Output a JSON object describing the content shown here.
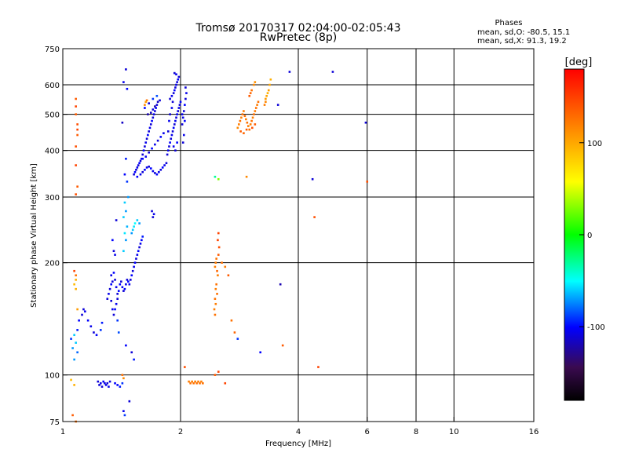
{
  "chart_data": {
    "type": "scatter",
    "title": "Tromsø 20170317 02:04:00-02:05:43",
    "subtitle": "RwPretec (8p)",
    "stats": {
      "heading": "Phases",
      "line_o": "mean, sd,O: -80.5, 15.1",
      "line_x": "mean, sd,X:  91.3, 19.2"
    },
    "xlabel": "Frequency [MHz]",
    "ylabel": "Stationary phase Virtual Height [km]",
    "x_scale": "log",
    "y_scale": "log",
    "xlim": [
      1,
      16
    ],
    "ylim": [
      75,
      750
    ],
    "x_ticks": [
      {
        "v": 1,
        "label": "1"
      },
      {
        "v": 2,
        "label": "2"
      },
      {
        "v": 4,
        "label": "4"
      },
      {
        "v": 6,
        "label": "6"
      },
      {
        "v": 8,
        "label": "8"
      },
      {
        "v": 10,
        "label": "10"
      },
      {
        "v": 16,
        "label": "16"
      }
    ],
    "y_ticks": [
      {
        "v": 75,
        "label": "75"
      },
      {
        "v": 100,
        "label": "100"
      },
      {
        "v": 200,
        "label": "200"
      },
      {
        "v": 300,
        "label": "300"
      },
      {
        "v": 400,
        "label": "400"
      },
      {
        "v": 500,
        "label": "500"
      },
      {
        "v": 600,
        "label": "600"
      },
      {
        "v": 750,
        "label": "750"
      }
    ],
    "grid": true,
    "colorbar": {
      "label": "[deg]",
      "range": [
        -180,
        180
      ],
      "ticks": [
        {
          "v": 100,
          "label": "100"
        },
        {
          "v": 0,
          "label": "0"
        },
        {
          "v": -100,
          "label": "-100"
        }
      ]
    },
    "points": [
      [
        1.45,
        660,
        -110
      ],
      [
        1.43,
        610,
        -105
      ],
      [
        1.46,
        585,
        -100
      ],
      [
        1.42,
        475,
        -115
      ],
      [
        1.45,
        380,
        -95
      ],
      [
        1.44,
        345,
        -100
      ],
      [
        1.46,
        330,
        -90
      ],
      [
        1.47,
        300,
        -70
      ],
      [
        1.44,
        290,
        -60
      ],
      [
        1.45,
        275,
        -70
      ],
      [
        1.43,
        265,
        -60
      ],
      [
        1.46,
        250,
        -65
      ],
      [
        1.44,
        240,
        -55
      ],
      [
        1.45,
        230,
        -70
      ],
      [
        1.43,
        215,
        -60
      ],
      [
        1.08,
        550,
        140
      ],
      [
        1.08,
        525,
        150
      ],
      [
        1.08,
        500,
        140
      ],
      [
        1.09,
        470,
        145
      ],
      [
        1.09,
        455,
        150
      ],
      [
        1.09,
        440,
        140
      ],
      [
        1.08,
        410,
        145
      ],
      [
        1.08,
        365,
        150
      ],
      [
        1.09,
        320,
        140
      ],
      [
        1.08,
        305,
        145
      ],
      [
        1.07,
        190,
        150
      ],
      [
        1.08,
        185,
        130
      ],
      [
        1.08,
        180,
        100
      ],
      [
        1.07,
        175,
        95
      ],
      [
        1.08,
        170,
        100
      ],
      [
        1.09,
        150,
        110
      ],
      [
        1.07,
        128,
        -60
      ],
      [
        1.08,
        122,
        -60
      ],
      [
        1.06,
        118,
        -70
      ],
      [
        1.05,
        125,
        -90
      ],
      [
        1.09,
        132,
        -95
      ],
      [
        1.1,
        140,
        -100
      ],
      [
        1.09,
        115,
        -80
      ],
      [
        1.07,
        110,
        -70
      ],
      [
        1.05,
        97,
        95
      ],
      [
        1.07,
        94,
        100
      ],
      [
        1.06,
        78,
        140
      ],
      [
        1.08,
        75,
        130
      ],
      [
        1.12,
        145,
        -110
      ],
      [
        1.13,
        150,
        -110
      ],
      [
        1.14,
        148,
        -105
      ],
      [
        1.16,
        140,
        -100
      ],
      [
        1.18,
        135,
        -105
      ],
      [
        1.2,
        130,
        -110
      ],
      [
        1.22,
        128,
        -100
      ],
      [
        1.25,
        132,
        -90
      ],
      [
        1.26,
        138,
        -95
      ],
      [
        1.23,
        96,
        -110
      ],
      [
        1.24,
        94,
        -110
      ],
      [
        1.25,
        95,
        -105
      ],
      [
        1.26,
        93,
        -110
      ],
      [
        1.27,
        96,
        -100
      ],
      [
        1.28,
        95,
        -110
      ],
      [
        1.29,
        94,
        -105
      ],
      [
        1.3,
        95,
        -110
      ],
      [
        1.31,
        93,
        -105
      ],
      [
        1.32,
        96,
        -110
      ],
      [
        1.36,
        95,
        -100
      ],
      [
        1.38,
        94,
        -100
      ],
      [
        1.4,
        93,
        -95
      ],
      [
        1.42,
        95,
        -90
      ],
      [
        1.3,
        160,
        -110
      ],
      [
        1.31,
        165,
        -105
      ],
      [
        1.32,
        170,
        -110
      ],
      [
        1.33,
        175,
        -100
      ],
      [
        1.34,
        178,
        -110
      ],
      [
        1.33,
        185,
        -105
      ],
      [
        1.35,
        188,
        -100
      ],
      [
        1.36,
        180,
        -110
      ],
      [
        1.37,
        172,
        -105
      ],
      [
        1.38,
        165,
        -110
      ],
      [
        1.39,
        168,
        -100
      ],
      [
        1.38,
        160,
        -110
      ],
      [
        1.37,
        155,
        -105
      ],
      [
        1.36,
        150,
        -100
      ],
      [
        1.35,
        145,
        -110
      ],
      [
        1.34,
        150,
        -105
      ],
      [
        1.33,
        158,
        -110
      ],
      [
        1.4,
        175,
        -100
      ],
      [
        1.41,
        178,
        -110
      ],
      [
        1.42,
        172,
        -105
      ],
      [
        1.43,
        168,
        -110
      ],
      [
        1.44,
        170,
        -100
      ],
      [
        1.45,
        175,
        -105
      ],
      [
        1.46,
        180,
        -110
      ],
      [
        1.47,
        178,
        -100
      ],
      [
        1.48,
        175,
        -105
      ],
      [
        1.49,
        180,
        -110
      ],
      [
        1.5,
        185,
        -100
      ],
      [
        1.51,
        190,
        -110
      ],
      [
        1.52,
        195,
        -105
      ],
      [
        1.53,
        200,
        -100
      ],
      [
        1.54,
        205,
        -110
      ],
      [
        1.55,
        210,
        -105
      ],
      [
        1.56,
        215,
        -100
      ],
      [
        1.57,
        220,
        -110
      ],
      [
        1.58,
        225,
        -105
      ],
      [
        1.59,
        230,
        -100
      ],
      [
        1.6,
        235,
        -95
      ],
      [
        1.35,
        215,
        -110
      ],
      [
        1.36,
        210,
        -105
      ],
      [
        1.34,
        230,
        -100
      ],
      [
        1.37,
        260,
        -110
      ],
      [
        1.5,
        240,
        -70
      ],
      [
        1.51,
        245,
        -60
      ],
      [
        1.52,
        250,
        -55
      ],
      [
        1.53,
        255,
        -50
      ],
      [
        1.55,
        260,
        -60
      ],
      [
        1.57,
        255,
        -70
      ],
      [
        1.38,
        140,
        -90
      ],
      [
        1.39,
        130,
        -85
      ],
      [
        1.45,
        120,
        -100
      ],
      [
        1.5,
        115,
        -110
      ],
      [
        1.52,
        110,
        -95
      ],
      [
        1.48,
        85,
        -110
      ],
      [
        1.43,
        80,
        -105
      ],
      [
        1.44,
        78,
        -90
      ],
      [
        1.42,
        100,
        130
      ],
      [
        1.43,
        98,
        120
      ],
      [
        1.7,
        265,
        -110
      ],
      [
        1.71,
        270,
        -105
      ],
      [
        1.69,
        275,
        -110
      ],
      [
        1.52,
        345,
        -110
      ],
      [
        1.53,
        350,
        -100
      ],
      [
        1.54,
        355,
        -110
      ],
      [
        1.55,
        360,
        -105
      ],
      [
        1.56,
        365,
        -110
      ],
      [
        1.57,
        370,
        -100
      ],
      [
        1.58,
        375,
        -110
      ],
      [
        1.59,
        380,
        -105
      ],
      [
        1.6,
        390,
        -110
      ],
      [
        1.61,
        400,
        -100
      ],
      [
        1.62,
        410,
        -110
      ],
      [
        1.63,
        420,
        -105
      ],
      [
        1.64,
        430,
        -110
      ],
      [
        1.65,
        440,
        -100
      ],
      [
        1.66,
        450,
        -110
      ],
      [
        1.67,
        460,
        -105
      ],
      [
        1.68,
        470,
        -110
      ],
      [
        1.69,
        480,
        -100
      ],
      [
        1.7,
        490,
        -110
      ],
      [
        1.71,
        500,
        -105
      ],
      [
        1.72,
        510,
        -110
      ],
      [
        1.73,
        520,
        -100
      ],
      [
        1.74,
        530,
        -110
      ],
      [
        1.55,
        340,
        -100
      ],
      [
        1.58,
        345,
        -105
      ],
      [
        1.6,
        350,
        -110
      ],
      [
        1.62,
        355,
        -100
      ],
      [
        1.64,
        360,
        -105
      ],
      [
        1.66,
        362,
        -110
      ],
      [
        1.68,
        358,
        -100
      ],
      [
        1.7,
        352,
        -105
      ],
      [
        1.72,
        348,
        -110
      ],
      [
        1.74,
        345,
        -100
      ],
      [
        1.76,
        350,
        -105
      ],
      [
        1.78,
        355,
        -110
      ],
      [
        1.8,
        360,
        -100
      ],
      [
        1.82,
        365,
        -105
      ],
      [
        1.84,
        370,
        -110
      ],
      [
        1.6,
        380,
        -100
      ],
      [
        1.63,
        385,
        -105
      ],
      [
        1.66,
        395,
        -110
      ],
      [
        1.69,
        405,
        -100
      ],
      [
        1.72,
        415,
        -105
      ],
      [
        1.75,
        425,
        -110
      ],
      [
        1.78,
        435,
        -100
      ],
      [
        1.81,
        445,
        -105
      ],
      [
        1.65,
        500,
        -120
      ],
      [
        1.68,
        505,
        -115
      ],
      [
        1.7,
        515,
        -110
      ],
      [
        1.72,
        525,
        -120
      ],
      [
        1.75,
        540,
        -115
      ],
      [
        1.77,
        545,
        -110
      ],
      [
        1.62,
        520,
        -100
      ],
      [
        1.66,
        535,
        -110
      ],
      [
        1.7,
        550,
        -90
      ],
      [
        1.74,
        560,
        -85
      ],
      [
        1.62,
        530,
        120
      ],
      [
        1.64,
        545,
        130
      ],
      [
        1.63,
        540,
        110
      ],
      [
        1.85,
        390,
        -110
      ],
      [
        1.86,
        400,
        -105
      ],
      [
        1.87,
        410,
        -110
      ],
      [
        1.88,
        420,
        -100
      ],
      [
        1.89,
        430,
        -110
      ],
      [
        1.9,
        440,
        -105
      ],
      [
        1.91,
        450,
        -110
      ],
      [
        1.92,
        460,
        -100
      ],
      [
        1.93,
        470,
        -110
      ],
      [
        1.94,
        480,
        -105
      ],
      [
        1.95,
        490,
        -110
      ],
      [
        1.96,
        500,
        -100
      ],
      [
        1.97,
        510,
        -110
      ],
      [
        1.98,
        520,
        -105
      ],
      [
        1.99,
        530,
        -110
      ],
      [
        2.0,
        540,
        -100
      ],
      [
        1.88,
        550,
        -110
      ],
      [
        1.9,
        560,
        -105
      ],
      [
        1.92,
        570,
        -110
      ],
      [
        1.93,
        580,
        -100
      ],
      [
        1.94,
        590,
        -110
      ],
      [
        1.95,
        600,
        -105
      ],
      [
        1.96,
        610,
        -110
      ],
      [
        1.97,
        620,
        -100
      ],
      [
        1.98,
        630,
        -110
      ],
      [
        1.95,
        640,
        -105
      ],
      [
        1.93,
        645,
        -110
      ],
      [
        1.86,
        450,
        -110
      ],
      [
        1.87,
        480,
        -105
      ],
      [
        1.88,
        500,
        -110
      ],
      [
        1.9,
        520,
        -105
      ],
      [
        1.91,
        540,
        -110
      ],
      [
        1.92,
        410,
        -105
      ],
      [
        1.94,
        400,
        -110
      ],
      [
        1.96,
        420,
        -100
      ],
      [
        2.02,
        470,
        -110
      ],
      [
        2.03,
        490,
        -105
      ],
      [
        2.04,
        510,
        -110
      ],
      [
        2.05,
        530,
        -100
      ],
      [
        2.06,
        550,
        -110
      ],
      [
        2.07,
        570,
        -105
      ],
      [
        2.06,
        590,
        -110
      ],
      [
        2.04,
        440,
        -105
      ],
      [
        2.03,
        420,
        -110
      ],
      [
        2.02,
        500,
        -105
      ],
      [
        2.05,
        480,
        -100
      ],
      [
        2.1,
        96,
        125
      ],
      [
        2.12,
        95,
        130
      ],
      [
        2.14,
        96,
        125
      ],
      [
        2.16,
        95,
        130
      ],
      [
        2.18,
        96,
        125
      ],
      [
        2.2,
        95,
        130
      ],
      [
        2.22,
        96,
        125
      ],
      [
        2.24,
        95,
        130
      ],
      [
        2.26,
        96,
        125
      ],
      [
        2.28,
        95,
        130
      ],
      [
        2.05,
        105,
        145
      ],
      [
        2.45,
        100,
        140
      ],
      [
        2.5,
        102,
        150
      ],
      [
        2.6,
        95,
        150
      ],
      [
        2.45,
        195,
        125
      ],
      [
        2.46,
        200,
        125
      ],
      [
        2.47,
        205,
        130
      ],
      [
        2.48,
        190,
        135
      ],
      [
        2.49,
        185,
        125
      ],
      [
        2.47,
        175,
        130
      ],
      [
        2.46,
        170,
        125
      ],
      [
        2.45,
        160,
        130
      ],
      [
        2.44,
        150,
        125
      ],
      [
        2.45,
        145,
        130
      ],
      [
        2.46,
        155,
        125
      ],
      [
        2.48,
        165,
        130
      ],
      [
        2.5,
        210,
        140
      ],
      [
        2.51,
        220,
        145
      ],
      [
        2.49,
        230,
        150
      ],
      [
        2.5,
        240,
        150
      ],
      [
        2.55,
        200,
        130
      ],
      [
        2.6,
        195,
        125
      ],
      [
        2.65,
        185,
        140
      ],
      [
        2.7,
        140,
        130
      ],
      [
        2.75,
        130,
        135
      ],
      [
        2.8,
        125,
        -90
      ],
      [
        2.45,
        340,
        -30
      ],
      [
        2.5,
        335,
        30
      ],
      [
        2.8,
        460,
        120
      ],
      [
        2.82,
        470,
        125
      ],
      [
        2.84,
        480,
        130
      ],
      [
        2.86,
        490,
        125
      ],
      [
        2.88,
        500,
        130
      ],
      [
        2.9,
        510,
        125
      ],
      [
        2.92,
        495,
        130
      ],
      [
        2.94,
        485,
        125
      ],
      [
        2.96,
        475,
        130
      ],
      [
        2.98,
        465,
        125
      ],
      [
        3.0,
        455,
        130
      ],
      [
        3.02,
        470,
        125
      ],
      [
        3.04,
        480,
        130
      ],
      [
        3.06,
        490,
        125
      ],
      [
        3.08,
        500,
        130
      ],
      [
        3.1,
        510,
        125
      ],
      [
        3.12,
        520,
        130
      ],
      [
        3.14,
        530,
        125
      ],
      [
        3.16,
        540,
        130
      ],
      [
        2.85,
        450,
        140
      ],
      [
        2.9,
        445,
        135
      ],
      [
        2.95,
        455,
        140
      ],
      [
        3.05,
        460,
        145
      ],
      [
        3.1,
        470,
        140
      ],
      [
        3.0,
        560,
        140
      ],
      [
        3.02,
        570,
        135
      ],
      [
        3.04,
        580,
        130
      ],
      [
        3.08,
        600,
        120
      ],
      [
        3.1,
        610,
        115
      ],
      [
        3.3,
        550,
        110
      ],
      [
        3.32,
        560,
        105
      ],
      [
        3.34,
        570,
        100
      ],
      [
        3.36,
        580,
        110
      ],
      [
        3.38,
        600,
        105
      ],
      [
        3.4,
        620,
        100
      ],
      [
        3.3,
        540,
        120
      ],
      [
        3.28,
        530,
        125
      ],
      [
        2.95,
        340,
        120
      ],
      [
        3.2,
        115,
        -100
      ],
      [
        3.55,
        530,
        -110
      ],
      [
        3.6,
        175,
        -120
      ],
      [
        3.65,
        120,
        140
      ],
      [
        3.8,
        650,
        -110
      ],
      [
        4.35,
        335,
        -110
      ],
      [
        4.4,
        265,
        145
      ],
      [
        4.5,
        105,
        150
      ],
      [
        4.9,
        650,
        -110
      ],
      [
        5.95,
        475,
        -110
      ],
      [
        6.0,
        330,
        145
      ]
    ]
  }
}
